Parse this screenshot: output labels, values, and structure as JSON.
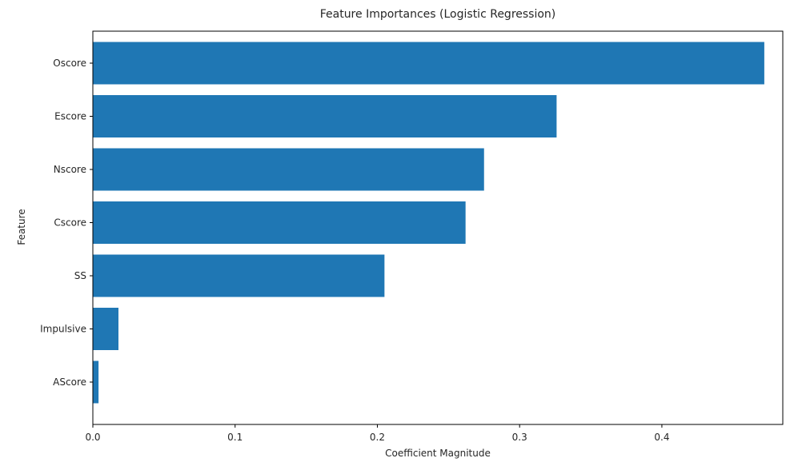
{
  "chart_data": {
    "type": "bar",
    "orientation": "horizontal",
    "title": "Feature Importances (Logistic Regression)",
    "xlabel": "Coefficient Magnitude",
    "ylabel": "Feature",
    "categories": [
      "Oscore",
      "Escore",
      "Nscore",
      "Cscore",
      "SS",
      "Impulsive",
      "AScore"
    ],
    "values": [
      0.472,
      0.326,
      0.275,
      0.262,
      0.205,
      0.018,
      0.004
    ],
    "xlim": [
      0,
      0.485
    ],
    "xticks": [
      0.0,
      0.1,
      0.2,
      0.3,
      0.4
    ],
    "xtick_labels": [
      "0.0",
      "0.1",
      "0.2",
      "0.3",
      "0.4"
    ],
    "grid": false,
    "bar_color": "#1f77b4"
  }
}
